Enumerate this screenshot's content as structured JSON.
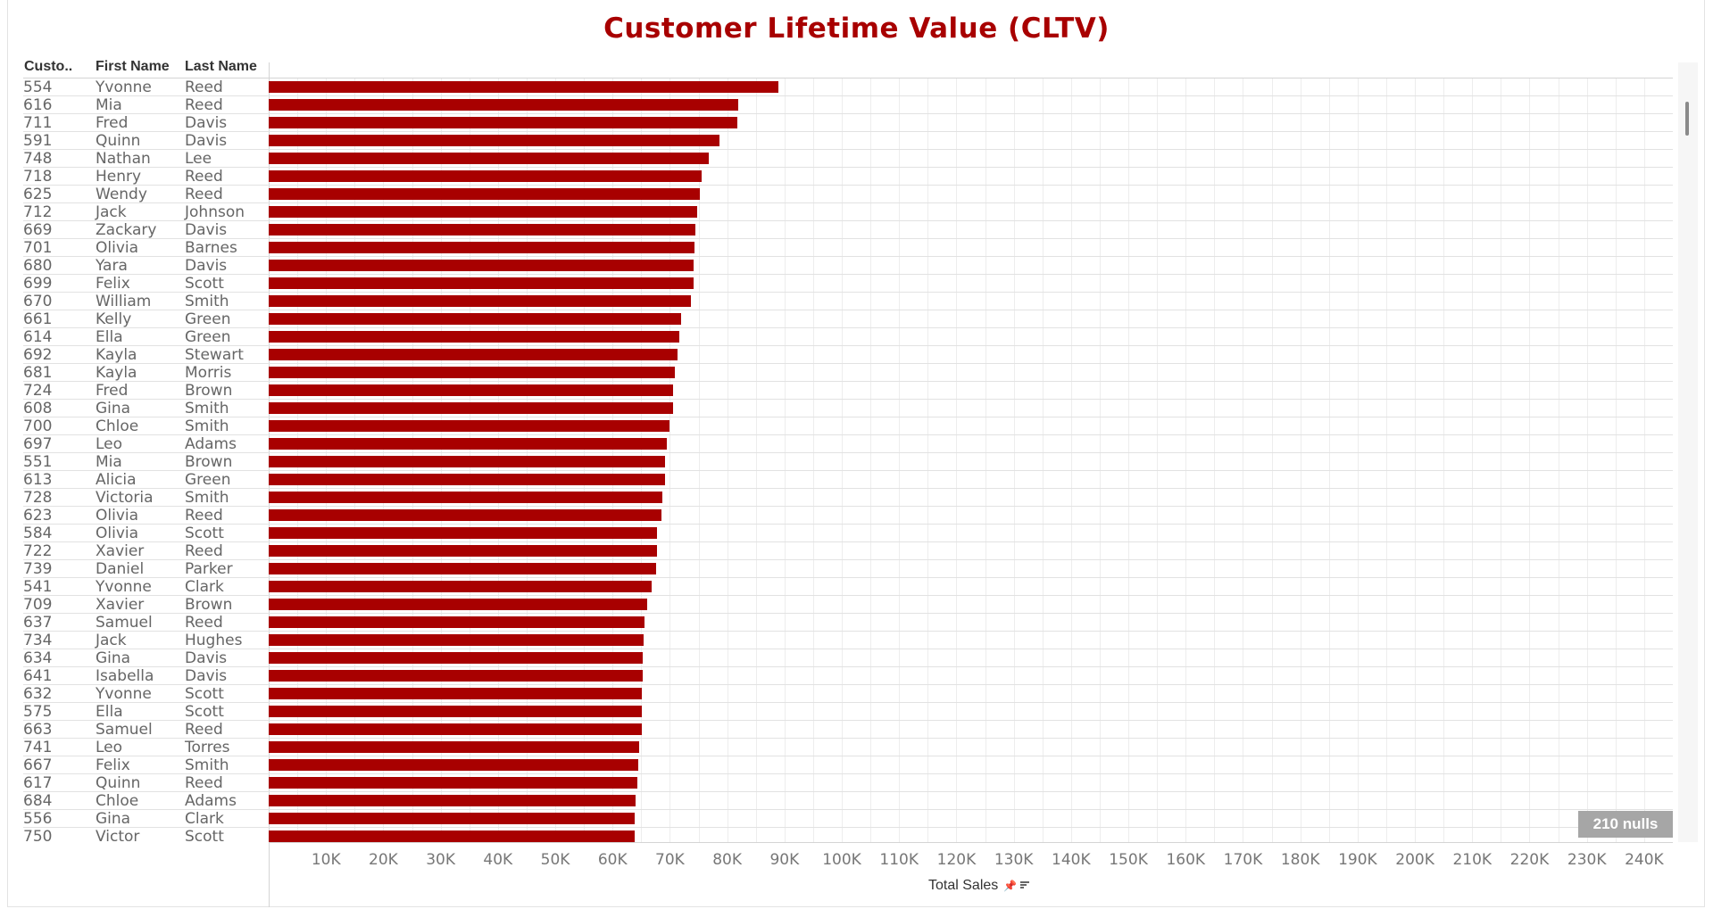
{
  "title": "Customer Lifetime Value (CLTV)",
  "headers": {
    "customer": "Custo..",
    "first": "First Name",
    "last": "Last Name"
  },
  "nulls_badge": "210 nulls",
  "colors": {
    "bar": "#a80000",
    "title": "#a80000"
  },
  "icons": [
    "pin-icon",
    "sort-icon",
    "scroll-thumb"
  ],
  "chart_data": {
    "type": "bar",
    "orientation": "horizontal",
    "title": "Customer Lifetime Value (CLTV)",
    "xlabel": "Total Sales",
    "xlim": [
      0,
      245000
    ],
    "x_ticks": [
      "10K",
      "20K",
      "30K",
      "40K",
      "50K",
      "60K",
      "70K",
      "80K",
      "90K",
      "100K",
      "110K",
      "120K",
      "130K",
      "140K",
      "150K",
      "160K",
      "170K",
      "180K",
      "190K",
      "200K",
      "210K",
      "220K",
      "230K",
      "240K"
    ],
    "x_tick_values": [
      10000,
      20000,
      30000,
      40000,
      50000,
      60000,
      70000,
      80000,
      90000,
      100000,
      110000,
      120000,
      130000,
      140000,
      150000,
      160000,
      170000,
      180000,
      190000,
      200000,
      210000,
      220000,
      230000,
      240000
    ],
    "grid": true,
    "rows": [
      {
        "id": "554",
        "first": "Yvonne",
        "last": "Reed",
        "value": 89000
      },
      {
        "id": "616",
        "first": "Mia",
        "last": "Reed",
        "value": 82000
      },
      {
        "id": "711",
        "first": "Fred",
        "last": "Davis",
        "value": 81800
      },
      {
        "id": "591",
        "first": "Quinn",
        "last": "Davis",
        "value": 78700
      },
      {
        "id": "748",
        "first": "Nathan",
        "last": "Lee",
        "value": 76800
      },
      {
        "id": "718",
        "first": "Henry",
        "last": "Reed",
        "value": 75500
      },
      {
        "id": "625",
        "first": "Wendy",
        "last": "Reed",
        "value": 75300
      },
      {
        "id": "712",
        "first": "Jack",
        "last": "Johnson",
        "value": 74800
      },
      {
        "id": "669",
        "first": "Zackary",
        "last": "Davis",
        "value": 74500
      },
      {
        "id": "701",
        "first": "Olivia",
        "last": "Barnes",
        "value": 74300
      },
      {
        "id": "680",
        "first": "Yara",
        "last": "Davis",
        "value": 74200
      },
      {
        "id": "699",
        "first": "Felix",
        "last": "Scott",
        "value": 74200
      },
      {
        "id": "670",
        "first": "William",
        "last": "Smith",
        "value": 73600
      },
      {
        "id": "661",
        "first": "Kelly",
        "last": "Green",
        "value": 71900
      },
      {
        "id": "614",
        "first": "Ella",
        "last": "Green",
        "value": 71700
      },
      {
        "id": "692",
        "first": "Kayla",
        "last": "Stewart",
        "value": 71300
      },
      {
        "id": "681",
        "first": "Kayla",
        "last": "Morris",
        "value": 70900
      },
      {
        "id": "724",
        "first": "Fred",
        "last": "Brown",
        "value": 70600
      },
      {
        "id": "608",
        "first": "Gina",
        "last": "Smith",
        "value": 70600
      },
      {
        "id": "700",
        "first": "Chloe",
        "last": "Smith",
        "value": 69900
      },
      {
        "id": "697",
        "first": "Leo",
        "last": "Adams",
        "value": 69400
      },
      {
        "id": "551",
        "first": "Mia",
        "last": "Brown",
        "value": 69200
      },
      {
        "id": "613",
        "first": "Alicia",
        "last": "Green",
        "value": 69100
      },
      {
        "id": "728",
        "first": "Victoria",
        "last": "Smith",
        "value": 68700
      },
      {
        "id": "623",
        "first": "Olivia",
        "last": "Reed",
        "value": 68600
      },
      {
        "id": "584",
        "first": "Olivia",
        "last": "Scott",
        "value": 67800
      },
      {
        "id": "722",
        "first": "Xavier",
        "last": "Reed",
        "value": 67700
      },
      {
        "id": "739",
        "first": "Daniel",
        "last": "Parker",
        "value": 67600
      },
      {
        "id": "541",
        "first": "Yvonne",
        "last": "Clark",
        "value": 66800
      },
      {
        "id": "709",
        "first": "Xavier",
        "last": "Brown",
        "value": 66100
      },
      {
        "id": "637",
        "first": "Samuel",
        "last": "Reed",
        "value": 65500
      },
      {
        "id": "734",
        "first": "Jack",
        "last": "Hughes",
        "value": 65400
      },
      {
        "id": "634",
        "first": "Gina",
        "last": "Davis",
        "value": 65300
      },
      {
        "id": "641",
        "first": "Isabella",
        "last": "Davis",
        "value": 65200
      },
      {
        "id": "632",
        "first": "Yvonne",
        "last": "Scott",
        "value": 65100
      },
      {
        "id": "575",
        "first": "Ella",
        "last": "Scott",
        "value": 65100
      },
      {
        "id": "663",
        "first": "Samuel",
        "last": "Reed",
        "value": 65100
      },
      {
        "id": "741",
        "first": "Leo",
        "last": "Torres",
        "value": 64700
      },
      {
        "id": "667",
        "first": "Felix",
        "last": "Smith",
        "value": 64500
      },
      {
        "id": "617",
        "first": "Quinn",
        "last": "Reed",
        "value": 64300
      },
      {
        "id": "684",
        "first": "Chloe",
        "last": "Adams",
        "value": 64000
      },
      {
        "id": "556",
        "first": "Gina",
        "last": "Clark",
        "value": 63800
      },
      {
        "id": "750",
        "first": "Victor",
        "last": "Scott",
        "value": 63800
      }
    ]
  }
}
